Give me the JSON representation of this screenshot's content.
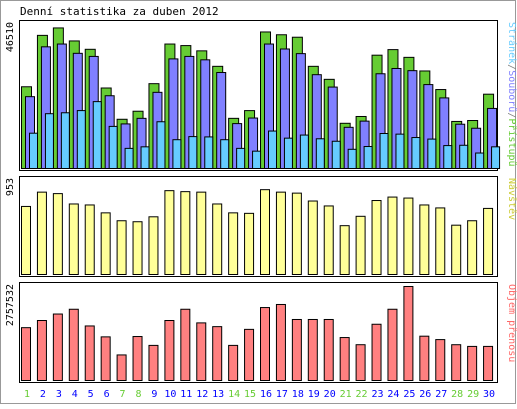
{
  "chart_data": [
    {
      "type": "bar",
      "title": "Denní statistika za duben 2012",
      "ymax_label": "46510",
      "ylim": [
        0,
        46510
      ],
      "legend": {
        "position": "right",
        "parts": [
          {
            "text": "Stránek",
            "color": "#66ccff"
          },
          {
            "text": "/",
            "color": "#808080"
          },
          {
            "text": "Souborů",
            "color": "#8080ff"
          },
          {
            "text": "/",
            "color": "#808080"
          },
          {
            "text": "Přístupů",
            "color": "#66cc33"
          }
        ]
      },
      "series": [
        {
          "name": "Přístupů",
          "color": "#66cc33",
          "values": [
            26400,
            43000,
            45400,
            41200,
            38500,
            26000,
            15900,
            18500,
            27400,
            40200,
            39700,
            38000,
            33000,
            16200,
            18700,
            44100,
            43200,
            42400,
            33000,
            28800,
            14600,
            16800,
            36600,
            38400,
            35900,
            31500,
            25500,
            15200,
            15500,
            24000
          ]
        },
        {
          "name": "Souborů",
          "color": "#8080ff",
          "values": [
            23200,
            39300,
            40200,
            37200,
            36200,
            23500,
            14400,
            16200,
            24600,
            35400,
            36200,
            35100,
            31000,
            14500,
            16300,
            40200,
            38600,
            37100,
            30300,
            26300,
            13300,
            15300,
            30600,
            32300,
            31600,
            27100,
            22800,
            14300,
            13000,
            19400
          ]
        },
        {
          "name": "Stránek",
          "color": "#66ccff",
          "values": [
            11400,
            17700,
            18000,
            18700,
            21600,
            13600,
            6500,
            7000,
            15100,
            9300,
            10300,
            10200,
            9300,
            6500,
            5600,
            12100,
            9800,
            10800,
            9600,
            8800,
            6200,
            7100,
            11300,
            11100,
            10000,
            9500,
            7400,
            7500,
            5000,
            7000
          ]
        }
      ]
    },
    {
      "type": "bar",
      "ymax_label": "953",
      "ylim": [
        0,
        953
      ],
      "legend": {
        "position": "right",
        "parts": [
          {
            "text": "Návštěv",
            "color": "#cccc33"
          }
        ]
      },
      "series": [
        {
          "name": "Návštěv",
          "color": "#ffff99",
          "values": [
            690,
            835,
            820,
            715,
            705,
            625,
            545,
            535,
            585,
            850,
            840,
            835,
            715,
            625,
            620,
            860,
            835,
            825,
            745,
            695,
            495,
            590,
            750,
            785,
            775,
            705,
            675,
            500,
            545,
            670
          ]
        }
      ]
    },
    {
      "type": "bar",
      "ymax_label": "2757532",
      "ylim": [
        0,
        2757532
      ],
      "legend": {
        "position": "right",
        "parts": [
          {
            "text": "Objem přenosu",
            "color": "#ff6666"
          }
        ]
      },
      "series": [
        {
          "name": "Objem přenosu",
          "color": "#ff8080",
          "values": [
            1550000,
            1760000,
            1950000,
            2090000,
            1600000,
            1280000,
            750000,
            1290000,
            1030000,
            1760000,
            2090000,
            1690000,
            1580000,
            1030000,
            1500000,
            2140000,
            2230000,
            1790000,
            1790000,
            1790000,
            1260000,
            1050000,
            1650000,
            2090000,
            2757532,
            1300000,
            1200000,
            1050000,
            1000000,
            1000000
          ]
        }
      ]
    }
  ],
  "x_axis": {
    "days": [
      "1",
      "2",
      "3",
      "4",
      "5",
      "6",
      "7",
      "8",
      "9",
      "10",
      "11",
      "12",
      "13",
      "14",
      "15",
      "16",
      "17",
      "18",
      "19",
      "20",
      "21",
      "22",
      "23",
      "24",
      "25",
      "26",
      "27",
      "28",
      "29",
      "30"
    ],
    "weekend_days": [
      "1",
      "7",
      "8",
      "14",
      "15",
      "21",
      "22",
      "28",
      "29"
    ],
    "weekday_color": "#0000ff",
    "weekend_color": "#66cc33"
  }
}
